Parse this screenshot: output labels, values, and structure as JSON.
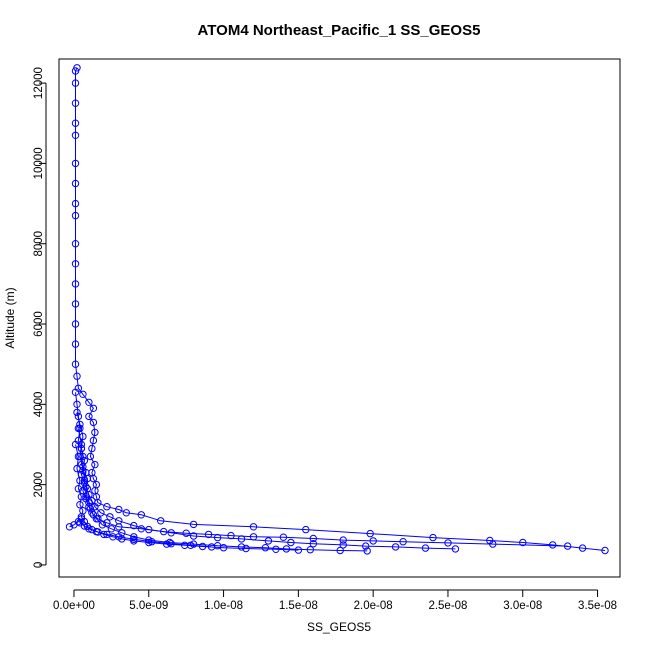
{
  "chart_data": {
    "type": "scatter",
    "title": "ATOM4 Northeast_Pacific_1 SS_GEOS5",
    "xlabel": "SS_GEOS5",
    "ylabel": "Altitude (m)",
    "xlim": [
      -1e-09,
      3.65e-08
    ],
    "ylim": [
      -300,
      12600
    ],
    "x_ticks": [
      0,
      5e-09,
      1e-08,
      1.5e-08,
      2e-08,
      2.5e-08,
      3e-08,
      3.5e-08
    ],
    "x_tick_labels": [
      "0.0e+00",
      "5.0e-09",
      "1.0e-08",
      "1.5e-08",
      "2.0e-08",
      "2.5e-08",
      "3.0e-08",
      "3.5e-08"
    ],
    "y_ticks": [
      0,
      2000,
      4000,
      6000,
      8000,
      10000,
      12000
    ],
    "y_tick_labels": [
      "0",
      "2000",
      "4000",
      "6000",
      "8000",
      "10000",
      "12000"
    ],
    "color": "#0000ff",
    "marker": "open-circle",
    "connect_points": true,
    "grid": false,
    "series": [
      {
        "points": [
          [
            2e-10,
            12380
          ],
          [
            1e-10,
            12300
          ],
          [
            1e-10,
            12000
          ],
          [
            1e-10,
            11500
          ],
          [
            1e-10,
            11000
          ],
          [
            1e-10,
            10700
          ],
          [
            1e-10,
            10000
          ],
          [
            1e-10,
            9500
          ],
          [
            1e-10,
            9000
          ],
          [
            1e-10,
            8700
          ],
          [
            1e-10,
            8000
          ],
          [
            1e-10,
            7500
          ],
          [
            1e-10,
            7000
          ],
          [
            1e-10,
            6500
          ],
          [
            1e-10,
            6000
          ],
          [
            1e-10,
            5500
          ],
          [
            1e-10,
            5000
          ],
          [
            2e-10,
            4700
          ],
          [
            3e-10,
            4400
          ],
          [
            6e-10,
            4250
          ],
          [
            1e-09,
            4050
          ],
          [
            1.3e-09,
            3900
          ],
          [
            1e-09,
            3700
          ],
          [
            1.3e-09,
            3550
          ],
          [
            1.4e-09,
            3300
          ],
          [
            1.3e-09,
            3100
          ],
          [
            1.2e-09,
            2900
          ],
          [
            1.1e-09,
            2700
          ],
          [
            1.4e-09,
            2500
          ],
          [
            1.2e-09,
            2300
          ],
          [
            1.3e-09,
            2150
          ],
          [
            1.5e-09,
            2000
          ],
          [
            1.4e-09,
            1850
          ],
          [
            1.5e-09,
            1700
          ],
          [
            1.6e-09,
            1550
          ],
          [
            2.2e-09,
            1450
          ],
          [
            3e-09,
            1380
          ],
          [
            3.5e-09,
            1300
          ],
          [
            4.5e-09,
            1250
          ],
          [
            5.8e-09,
            1100
          ],
          [
            8e-09,
            1010
          ],
          [
            1.2e-08,
            950
          ],
          [
            1.55e-08,
            880
          ],
          [
            1.98e-08,
            780
          ],
          [
            2.4e-08,
            680
          ],
          [
            2.78e-08,
            610
          ],
          [
            3e-08,
            560
          ],
          [
            3.2e-08,
            500
          ],
          [
            3.4e-08,
            420
          ],
          [
            3.55e-08,
            360
          ]
        ]
      },
      {
        "points": [
          [
            1e-10,
            4300
          ],
          [
            2e-10,
            4000
          ],
          [
            3e-10,
            3700
          ],
          [
            4e-10,
            3400
          ],
          [
            3e-10,
            3100
          ],
          [
            5e-10,
            2900
          ],
          [
            6e-10,
            2700
          ],
          [
            5e-10,
            2500
          ],
          [
            8e-10,
            2300
          ],
          [
            7e-10,
            2100
          ],
          [
            9e-10,
            1900
          ],
          [
            8e-10,
            1700
          ],
          [
            1e-09,
            1550
          ],
          [
            1.1e-09,
            1400
          ],
          [
            1.3e-09,
            1250
          ],
          [
            1.6e-09,
            1150
          ],
          [
            2.2e-09,
            1050
          ],
          [
            3e-09,
            950
          ],
          [
            4.5e-09,
            900
          ],
          [
            6e-09,
            830
          ],
          [
            7.5e-09,
            790
          ],
          [
            9e-09,
            760
          ],
          [
            1.05e-08,
            730
          ],
          [
            1.2e-08,
            700
          ],
          [
            1.4e-08,
            690
          ],
          [
            1.6e-08,
            660
          ],
          [
            1.8e-08,
            620
          ],
          [
            2e-08,
            600
          ],
          [
            2.2e-08,
            580
          ],
          [
            2.5e-08,
            550
          ],
          [
            2.8e-08,
            520
          ],
          [
            3.3e-08,
            470
          ]
        ]
      },
      {
        "points": [
          [
            2e-10,
            3800
          ],
          [
            4e-10,
            3500
          ],
          [
            6e-10,
            3200
          ],
          [
            5e-10,
            2900
          ],
          [
            7e-10,
            2600
          ],
          [
            6e-10,
            2350
          ],
          [
            9e-10,
            2150
          ],
          [
            8e-10,
            1950
          ],
          [
            1e-09,
            1750
          ],
          [
            1.2e-09,
            1600
          ],
          [
            1.4e-09,
            1450
          ],
          [
            1.8e-09,
            1300
          ],
          [
            2.4e-09,
            1200
          ],
          [
            3e-09,
            1100
          ],
          [
            4e-09,
            980
          ],
          [
            5e-09,
            880
          ],
          [
            6.5e-09,
            800
          ],
          [
            8e-09,
            720
          ],
          [
            9.6e-09,
            680
          ],
          [
            1.12e-08,
            650
          ],
          [
            1.3e-08,
            600
          ],
          [
            1.45e-08,
            560
          ],
          [
            1.6e-08,
            530
          ],
          [
            1.8e-08,
            500
          ],
          [
            1.95e-08,
            470
          ],
          [
            2.15e-08,
            450
          ],
          [
            2.35e-08,
            420
          ],
          [
            2.55e-08,
            400
          ]
        ]
      },
      {
        "points": [
          [
            3e-10,
            3400
          ],
          [
            5e-10,
            3000
          ],
          [
            4e-10,
            2700
          ],
          [
            6e-10,
            2450
          ],
          [
            5e-10,
            2250
          ],
          [
            7e-10,
            2050
          ],
          [
            6e-10,
            1850
          ],
          [
            8e-10,
            1650
          ],
          [
            1e-09,
            1450
          ],
          [
            1.2e-09,
            1300
          ],
          [
            1.5e-09,
            1150
          ],
          [
            1.9e-09,
            1000
          ],
          [
            2.5e-09,
            900
          ],
          [
            3.2e-09,
            800
          ],
          [
            4e-09,
            700
          ],
          [
            5e-09,
            620
          ],
          [
            6.4e-09,
            560
          ],
          [
            8e-09,
            520
          ],
          [
            9.6e-09,
            480
          ],
          [
            1.12e-08,
            450
          ],
          [
            1.28e-08,
            430
          ],
          [
            1.42e-08,
            400
          ],
          [
            1.58e-08,
            380
          ],
          [
            1.78e-08,
            360
          ],
          [
            1.96e-08,
            350
          ]
        ]
      },
      {
        "points": [
          [
            1e-10,
            3000
          ],
          [
            3e-10,
            2700
          ],
          [
            2e-10,
            2400
          ],
          [
            4e-10,
            2100
          ],
          [
            3e-10,
            1900
          ],
          [
            5e-10,
            1700
          ],
          [
            4e-10,
            1500
          ],
          [
            6e-10,
            1350
          ],
          [
            5e-10,
            1200
          ],
          [
            7e-10,
            1080
          ],
          [
            9e-10,
            960
          ],
          [
            1.2e-09,
            880
          ],
          [
            1.6e-09,
            820
          ],
          [
            2e-09,
            760
          ],
          [
            2.6e-09,
            700
          ],
          [
            3.2e-09,
            650
          ],
          [
            4e-09,
            600
          ],
          [
            5e-09,
            560
          ],
          [
            6.2e-09,
            520
          ],
          [
            7.4e-09,
            490
          ],
          [
            8.6e-09,
            460
          ],
          [
            1e-08,
            430
          ],
          [
            1.15e-08,
            410
          ],
          [
            1.35e-08,
            390
          ],
          [
            1.5e-08,
            370
          ]
        ]
      },
      {
        "points": [
          [
            -3e-10,
            950
          ],
          [
            0,
            1000
          ],
          [
            3e-10,
            1080
          ],
          [
            5e-10,
            1150
          ],
          [
            4e-10,
            1050
          ],
          [
            7e-10,
            970
          ],
          [
            1e-09,
            900
          ],
          [
            1.5e-09,
            830
          ],
          [
            2.2e-09,
            760
          ],
          [
            3e-09,
            700
          ],
          [
            4e-09,
            640
          ],
          [
            5.2e-09,
            580
          ],
          [
            6.5e-09,
            530
          ],
          [
            7.8e-09,
            490
          ],
          [
            9.2e-09,
            450
          ]
        ]
      }
    ]
  }
}
